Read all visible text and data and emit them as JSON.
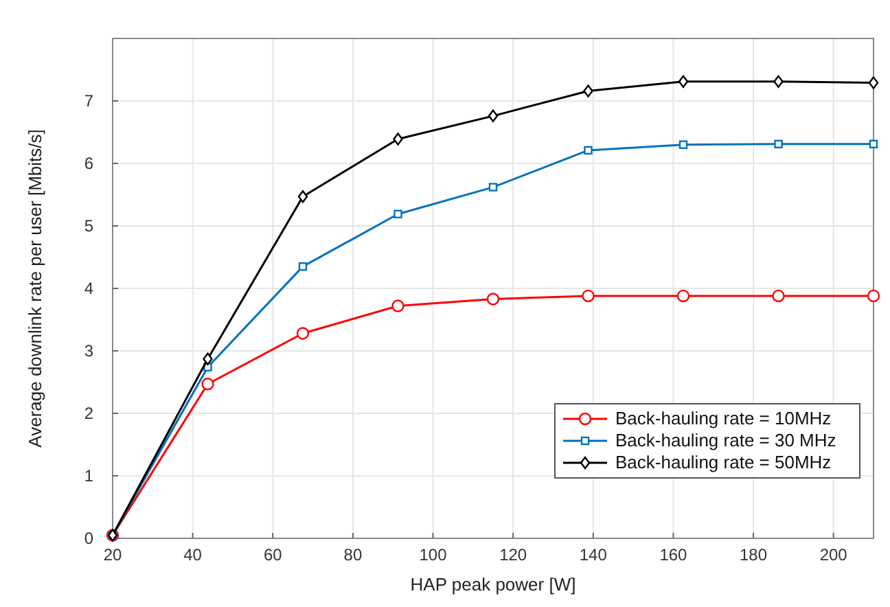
{
  "chart_data": {
    "type": "line",
    "xlabel": "HAP peak power [W]",
    "ylabel": "Average downlink rate per user [Mbits/s]",
    "x": [
      20,
      43.75,
      67.5,
      91.25,
      115,
      138.75,
      162.5,
      186.25,
      210
    ],
    "xlim": [
      20,
      210
    ],
    "xticks": [
      20,
      40,
      60,
      80,
      100,
      120,
      140,
      160,
      180,
      200
    ],
    "ylim": [
      0,
      8
    ],
    "yticks": [
      0,
      1,
      2,
      3,
      4,
      5,
      6,
      7
    ],
    "grid": true,
    "legend": "bottom right",
    "line_style": "solid",
    "series": [
      {
        "name": "Back-hauling rate = 10MHz",
        "color": "#ff0000",
        "marker": "circle",
        "values": [
          0.05,
          2.47,
          3.28,
          3.72,
          3.83,
          3.88,
          3.88,
          3.88,
          3.88
        ]
      },
      {
        "name": "Back-hauling rate = 30 MHz",
        "color": "#0072bd",
        "marker": "square",
        "values": [
          0.05,
          2.74,
          4.35,
          5.19,
          5.62,
          6.21,
          6.3,
          6.31,
          6.31
        ]
      },
      {
        "name": "Back-hauling rate = 50MHz",
        "color": "#000000",
        "marker": "diamond",
        "values": [
          0.05,
          2.87,
          5.47,
          6.39,
          6.76,
          7.16,
          7.31,
          7.31,
          7.29
        ]
      }
    ]
  }
}
